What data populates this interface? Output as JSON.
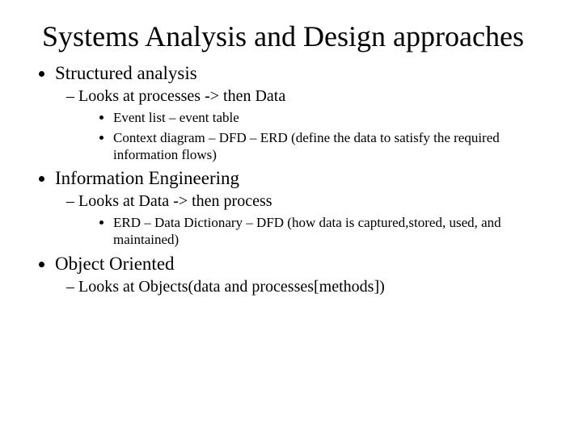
{
  "title": "Systems Analysis and Design approaches",
  "items": [
    {
      "label": "Structured analysis",
      "sub": [
        {
          "label": "Looks at processes -> then Data",
          "subsub": [
            "Event list – event table",
            "Context diagram – DFD – ERD (define the data to satisfy the required information flows)"
          ]
        }
      ]
    },
    {
      "label": "Information Engineering",
      "sub": [
        {
          "label": "Looks at Data -> then process",
          "subsub": [
            "ERD – Data Dictionary – DFD (how data is captured,stored, used, and maintained)"
          ]
        }
      ]
    },
    {
      "label": "Object Oriented",
      "sub": [
        {
          "label": "Looks at Objects(data and processes[methods])",
          "subsub": []
        }
      ]
    }
  ],
  "colors": {
    "background": "#ffffff",
    "text": "#000000"
  },
  "fonts": {
    "family": "Times New Roman",
    "title_size": 36,
    "l1_size": 23,
    "l2_size": 20,
    "l3_size": 17
  }
}
